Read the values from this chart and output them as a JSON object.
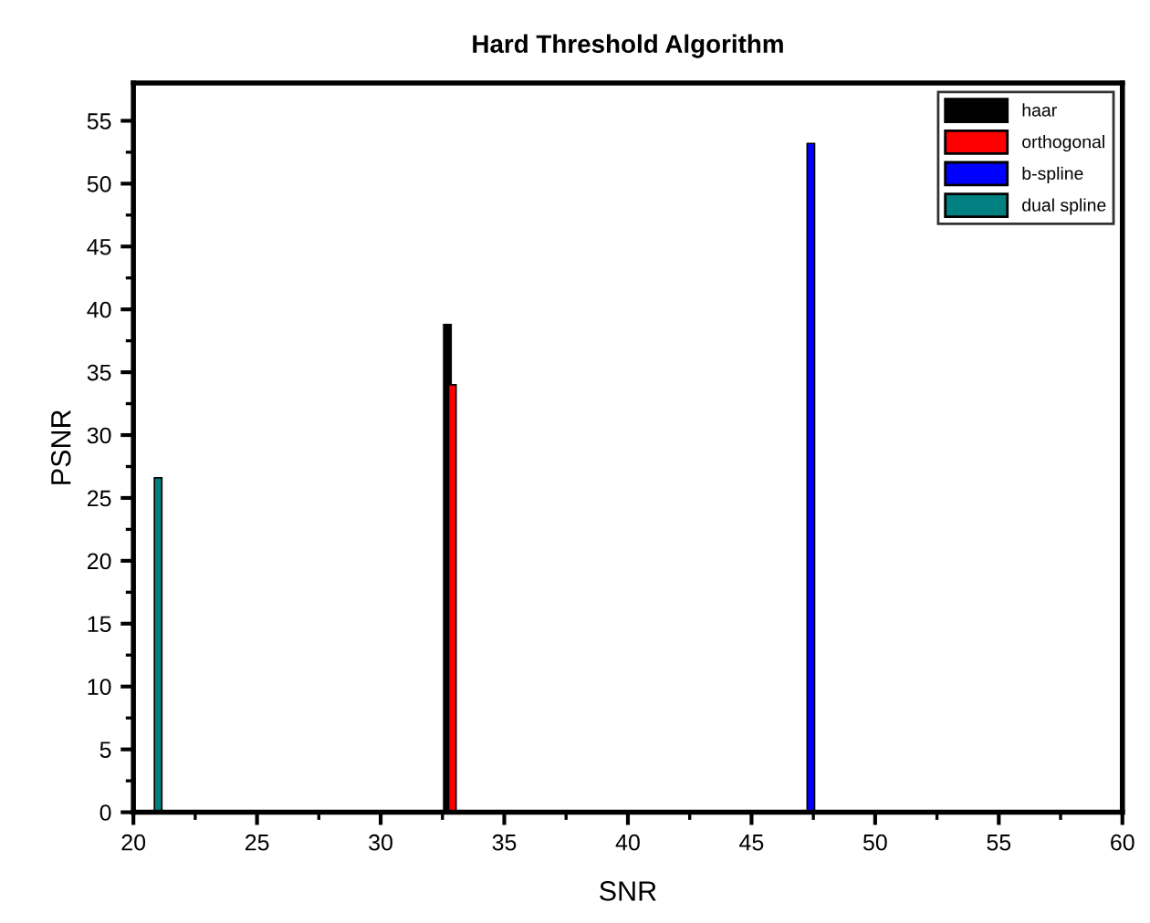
{
  "chart_data": {
    "type": "bar",
    "title": "Hard Threshold Algorithm",
    "xlabel": "SNR",
    "ylabel": "PSNR",
    "series": [
      {
        "name": "haar",
        "color": "#000000",
        "x": [
          32.7
        ],
        "values": [
          38.8
        ]
      },
      {
        "name": "orthogonal",
        "color": "#ff0000",
        "x": [
          32.9
        ],
        "values": [
          34.0
        ]
      },
      {
        "name": "b-spline",
        "color": "#0000ff",
        "x": [
          47.4
        ],
        "values": [
          53.2
        ]
      },
      {
        "name": "dual spline",
        "color": "#008080",
        "x": [
          21.0
        ],
        "values": [
          26.6
        ]
      }
    ],
    "xlim": [
      20,
      60
    ],
    "xticks": [
      20,
      25,
      30,
      35,
      40,
      45,
      50,
      55,
      60
    ],
    "ylim": [
      0,
      58
    ],
    "yticks": [
      0,
      5,
      10,
      15,
      20,
      25,
      30,
      35,
      40,
      45,
      50,
      55
    ],
    "grid": false,
    "legend": "top right"
  }
}
